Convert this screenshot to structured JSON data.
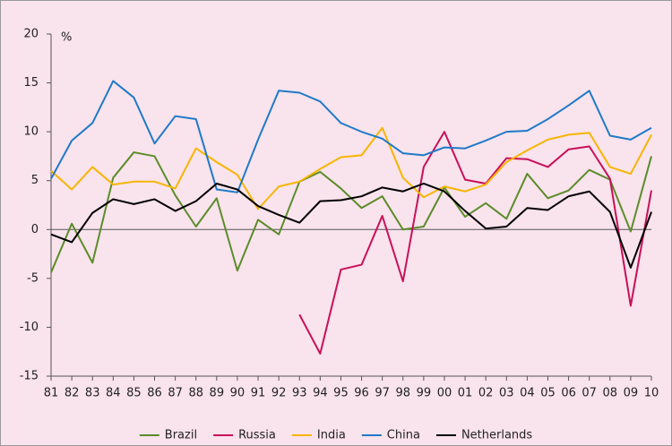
{
  "chart_data": {
    "type": "line",
    "y_unit_label": "%",
    "categories": [
      "81",
      "82",
      "83",
      "84",
      "85",
      "86",
      "87",
      "88",
      "89",
      "90",
      "91",
      "92",
      "93",
      "94",
      "95",
      "96",
      "97",
      "98",
      "99",
      "00",
      "01",
      "02",
      "03",
      "04",
      "05",
      "06",
      "07",
      "08",
      "09",
      "10"
    ],
    "ylim": [
      -15,
      20
    ],
    "yticks": [
      -15,
      -10,
      -5,
      0,
      5,
      10,
      15,
      20
    ],
    "grid": false,
    "zero_line": true,
    "legend": "bottom",
    "series": [
      {
        "name": "Brazil",
        "color": "#5b8c2a",
        "values": [
          -4.4,
          0.6,
          -3.4,
          5.3,
          7.9,
          7.5,
          3.5,
          0.3,
          3.2,
          -4.2,
          1.0,
          -0.5,
          4.9,
          5.9,
          4.2,
          2.2,
          3.4,
          0.0,
          0.3,
          4.3,
          1.3,
          2.7,
          1.1,
          5.7,
          3.2,
          4.0,
          6.1,
          5.1,
          -0.2,
          7.5
        ]
      },
      {
        "name": "Russia",
        "color": "#c8105a",
        "values": [
          null,
          null,
          null,
          null,
          null,
          null,
          null,
          null,
          null,
          null,
          null,
          null,
          -8.7,
          -12.7,
          -4.1,
          -3.6,
          1.4,
          -5.3,
          6.4,
          10.0,
          5.1,
          4.7,
          7.3,
          7.2,
          6.4,
          8.2,
          8.5,
          5.2,
          -7.8,
          4.0
        ]
      },
      {
        "name": "India",
        "color": "#f7b500",
        "values": [
          6.0,
          4.1,
          6.4,
          4.6,
          4.9,
          4.9,
          4.2,
          8.3,
          6.9,
          5.6,
          2.1,
          4.4,
          4.9,
          6.2,
          7.4,
          7.6,
          10.4,
          5.3,
          3.3,
          4.4,
          3.9,
          4.6,
          6.9,
          8.1,
          9.2,
          9.7,
          9.9,
          6.4,
          5.7,
          9.7
        ]
      },
      {
        "name": "China",
        "color": "#1f7ac8",
        "values": [
          5.2,
          9.1,
          10.9,
          15.2,
          13.5,
          8.8,
          11.6,
          11.3,
          4.1,
          3.8,
          9.2,
          14.2,
          14.0,
          13.1,
          10.9,
          10.0,
          9.3,
          7.8,
          7.6,
          8.4,
          8.3,
          9.1,
          10.0,
          10.1,
          11.3,
          12.7,
          14.2,
          9.6,
          9.2,
          10.4
        ]
      },
      {
        "name": "Netherlands",
        "color": "#000000",
        "values": [
          -0.5,
          -1.3,
          1.7,
          3.1,
          2.6,
          3.1,
          1.9,
          2.9,
          4.7,
          4.1,
          2.4,
          1.5,
          0.7,
          2.9,
          3.0,
          3.4,
          4.3,
          3.9,
          4.7,
          3.9,
          1.9,
          0.1,
          0.3,
          2.2,
          2.0,
          3.4,
          3.9,
          1.8,
          -3.9,
          1.8
        ]
      }
    ]
  }
}
